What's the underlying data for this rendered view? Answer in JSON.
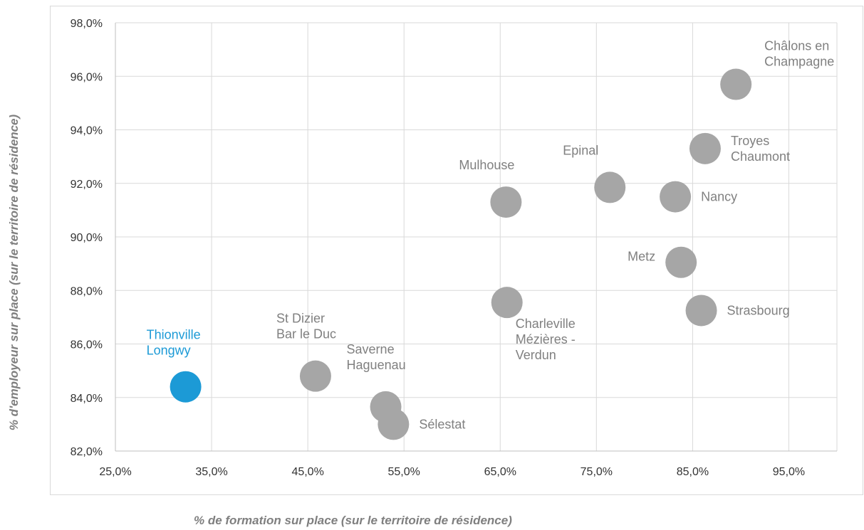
{
  "chart_data": {
    "type": "scatter",
    "title": "",
    "xlabel": "% de formation sur place (sur le territoire  de résidence)",
    "ylabel": "% d'employeur sur place (sur le territoire  de résidence)",
    "xlim": [
      25.0,
      100.0
    ],
    "ylim": [
      82.0,
      98.0
    ],
    "x_ticks": [
      "25,0%",
      "35,0%",
      "45,0%",
      "55,0%",
      "65,0%",
      "75,0%",
      "85,0%",
      "95,0%"
    ],
    "y_ticks": [
      "82,0%",
      "84,0%",
      "86,0%",
      "88,0%",
      "90,0%",
      "92,0%",
      "94,0%",
      "96,0%",
      "98,0%"
    ],
    "grid": true,
    "colors": {
      "default": "#a6a6a6",
      "highlight": "#1c9ad6",
      "grid": "#d9d9d9"
    },
    "points": [
      {
        "name": "Thionville Longwy",
        "label_lines": [
          "Thionville",
          "Longwy"
        ],
        "x": 32.3,
        "y": 84.4,
        "highlight": true,
        "label_pos": "top-left"
      },
      {
        "name": "St Dizier Bar le Duc",
        "label_lines": [
          "St Dizier",
          "Bar le Duc"
        ],
        "x": 45.8,
        "y": 84.8,
        "highlight": false,
        "label_pos": "top-left"
      },
      {
        "name": "Saverne Haguenau",
        "label_lines": [
          "Saverne",
          "Haguenau"
        ],
        "x": 53.1,
        "y": 83.65,
        "highlight": false,
        "label_pos": "top-left"
      },
      {
        "name": "Sélestat",
        "label_lines": [
          "Sélestat"
        ],
        "x": 53.9,
        "y": 83.0,
        "highlight": false,
        "label_pos": "right"
      },
      {
        "name": "Mulhouse",
        "label_lines": [
          "Mulhouse"
        ],
        "x": 65.6,
        "y": 91.3,
        "highlight": false,
        "label_pos": "top-left"
      },
      {
        "name": "Charleville Mézières - Verdun",
        "label_lines": [
          "Charleville",
          "Mézières -",
          "Verdun"
        ],
        "x": 65.7,
        "y": 87.55,
        "highlight": false,
        "label_pos": "bottom-right"
      },
      {
        "name": "Epinal",
        "label_lines": [
          "Epinal"
        ],
        "x": 76.4,
        "y": 91.85,
        "highlight": false,
        "label_pos": "top-left"
      },
      {
        "name": "Nancy",
        "label_lines": [
          "Nancy"
        ],
        "x": 83.2,
        "y": 91.5,
        "highlight": false,
        "label_pos": "right"
      },
      {
        "name": "Metz",
        "label_lines": [
          "Metz"
        ],
        "x": 83.8,
        "y": 89.05,
        "highlight": false,
        "label_pos": "left"
      },
      {
        "name": "Strasbourg",
        "label_lines": [
          "Strasbourg"
        ],
        "x": 85.9,
        "y": 87.25,
        "highlight": false,
        "label_pos": "right"
      },
      {
        "name": "Troyes Chaumont",
        "label_lines": [
          "Troyes",
          "Chaumont"
        ],
        "x": 86.3,
        "y": 93.3,
        "highlight": false,
        "label_pos": "right"
      },
      {
        "name": "Châlons en Champagne",
        "label_lines": [
          "Châlons en",
          "Champagne"
        ],
        "x": 89.5,
        "y": 95.7,
        "highlight": false,
        "label_pos": "top-right"
      }
    ]
  }
}
